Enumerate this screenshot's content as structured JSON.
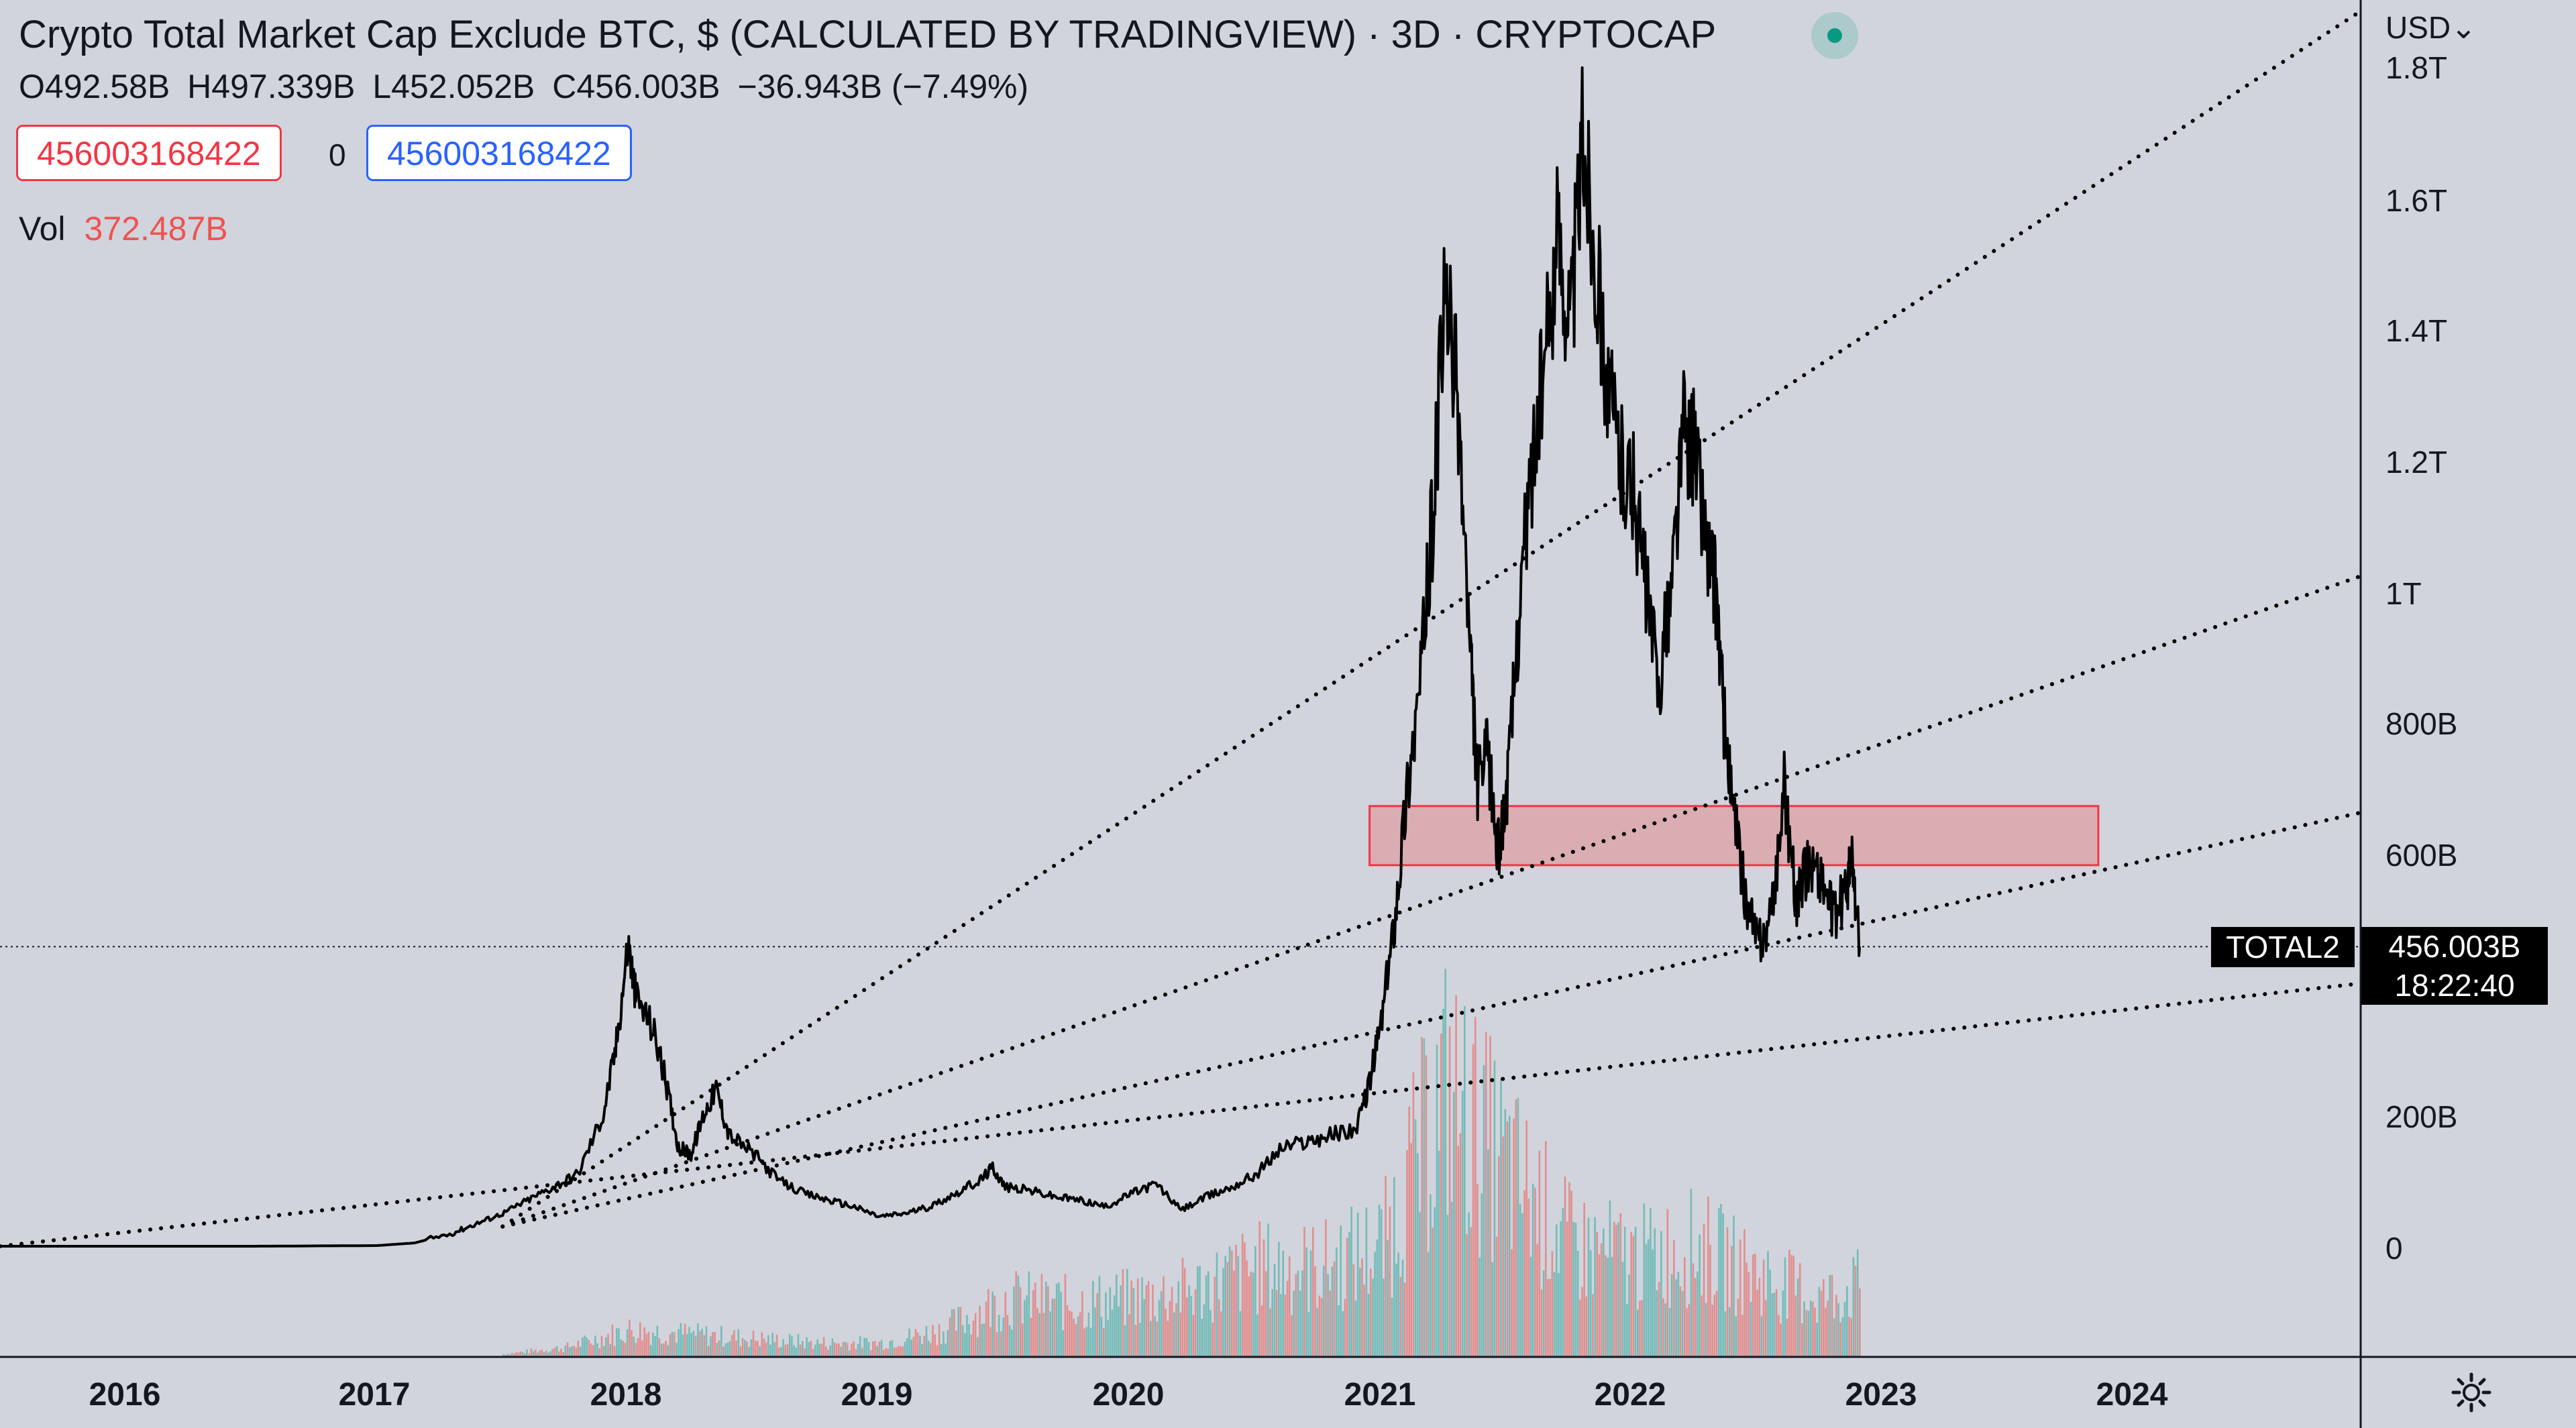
{
  "header": {
    "title": "Crypto Total Market Cap Exclude BTC, $ (CALCULATED BY TRADINGVIEW) · 3D · CRYPTOCAP",
    "ohlc": {
      "open": "O492.58B",
      "high": "H497.339B",
      "low": "L452.052B",
      "close": "C456.003B",
      "change": "−36.943B (−7.49%)"
    },
    "sell_price": "456003168422",
    "spread": "0",
    "buy_price": "456003168422",
    "volume_label": "Vol",
    "volume_value": "372.487B"
  },
  "price_axis": {
    "currency": "USD⌄",
    "labels": [
      "1.8T",
      "1.6T",
      "1.4T",
      "1.2T",
      "1T",
      "800B",
      "600B",
      "200B",
      "0"
    ]
  },
  "time_axis": {
    "labels": [
      "2016",
      "2017",
      "2018",
      "2019",
      "2020",
      "2021",
      "2022",
      "2023",
      "2024"
    ]
  },
  "last_price": {
    "symbol": "TOTAL2",
    "value": "456.003B",
    "countdown": "18:22:40"
  },
  "colors": {
    "background": "#d1d4dc",
    "price_line": "#000000",
    "zone_fill": "#e57373",
    "zone_border": "#f23645",
    "volume_up": "#26a69a",
    "volume_down": "#ef5350"
  },
  "chart_data": {
    "type": "line",
    "x_unit": "year",
    "y_unit": "USD (billions)",
    "ylim": [
      -130,
      1850
    ],
    "xlim": [
      2015.5,
      2024.9
    ],
    "price_series": {
      "x": [
        2015.5,
        2016.0,
        2016.5,
        2017.0,
        2017.15,
        2017.3,
        2017.4,
        2017.5,
        2017.6,
        2017.7,
        2017.8,
        2017.9,
        2017.95,
        2018.0,
        2018.03,
        2018.1,
        2018.15,
        2018.2,
        2018.25,
        2018.3,
        2018.35,
        2018.4,
        2018.5,
        2018.6,
        2018.7,
        2018.8,
        2018.9,
        2019.0,
        2019.1,
        2019.2,
        2019.3,
        2019.4,
        2019.45,
        2019.5,
        2019.6,
        2019.7,
        2019.8,
        2019.9,
        2020.0,
        2020.1,
        2020.2,
        2020.3,
        2020.4,
        2020.5,
        2020.6,
        2020.7,
        2020.8,
        2020.9,
        2020.95,
        2021.0,
        2021.05,
        2021.1,
        2021.15,
        2021.2,
        2021.25,
        2021.3,
        2021.35,
        2021.38,
        2021.42,
        2021.46,
        2021.5,
        2021.55,
        2021.6,
        2021.65,
        2021.7,
        2021.75,
        2021.8,
        2021.85,
        2021.9,
        2021.95,
        2022.0,
        2022.05,
        2022.1,
        2022.15,
        2022.2,
        2022.25,
        2022.3,
        2022.33,
        2022.36,
        2022.4,
        2022.45,
        2022.5,
        2022.55,
        2022.6,
        2022.65,
        2022.7,
        2022.75,
        2022.8,
        2022.85,
        2022.87,
        2022.9
      ],
      "y": [
        0,
        0,
        0,
        1,
        5,
        20,
        35,
        50,
        70,
        90,
        110,
        200,
        300,
        460,
        380,
        330,
        250,
        150,
        140,
        200,
        240,
        170,
        140,
        100,
        80,
        70,
        60,
        45,
        50,
        60,
        80,
        100,
        120,
        90,
        85,
        75,
        70,
        60,
        80,
        95,
        55,
        75,
        90,
        110,
        150,
        160,
        170,
        180,
        250,
        350,
        500,
        700,
        850,
        1100,
        1450,
        1300,
        900,
        700,
        750,
        600,
        700,
        1000,
        1200,
        1350,
        1550,
        1400,
        1700,
        1500,
        1300,
        1200,
        1150,
        1000,
        850,
        1000,
        1250,
        1200,
        1050,
        1000,
        800,
        650,
        520,
        460,
        500,
        700,
        520,
        590,
        560,
        500,
        550,
        590,
        456
      ]
    },
    "volume_series": {
      "unit": "relative",
      "x": [
        2017.5,
        2017.75,
        2018.0,
        2018.25,
        2018.5,
        2018.75,
        2019.0,
        2019.25,
        2019.5,
        2019.75,
        2020.0,
        2020.25,
        2020.5,
        2020.75,
        2021.0,
        2021.25,
        2021.5,
        2021.75,
        2022.0,
        2022.25,
        2022.5,
        2022.75,
        2022.9
      ],
      "values": [
        0.5,
        2,
        6,
        5,
        4,
        3,
        3,
        6,
        13,
        12,
        13,
        15,
        20,
        20,
        25,
        60,
        42,
        25,
        22,
        25,
        18,
        13,
        16
      ]
    },
    "trendlines": [
      {
        "style": "dotted",
        "points": [
          [
            2017.5,
            30
          ],
          [
            2024.9,
            1880
          ]
        ]
      },
      {
        "style": "dotted",
        "points": [
          [
            2017.5,
            30
          ],
          [
            2024.9,
            1020
          ]
        ]
      },
      {
        "style": "dotted",
        "points": [
          [
            2017.5,
            30
          ],
          [
            2024.9,
            660
          ]
        ]
      },
      {
        "style": "dotted",
        "points": [
          [
            2015.5,
            0
          ],
          [
            2024.9,
            400
          ]
        ]
      }
    ],
    "zone": {
      "x": [
        2020.95,
        2023.85
      ],
      "y": [
        580,
        670
      ]
    },
    "last_value_line": 456
  }
}
